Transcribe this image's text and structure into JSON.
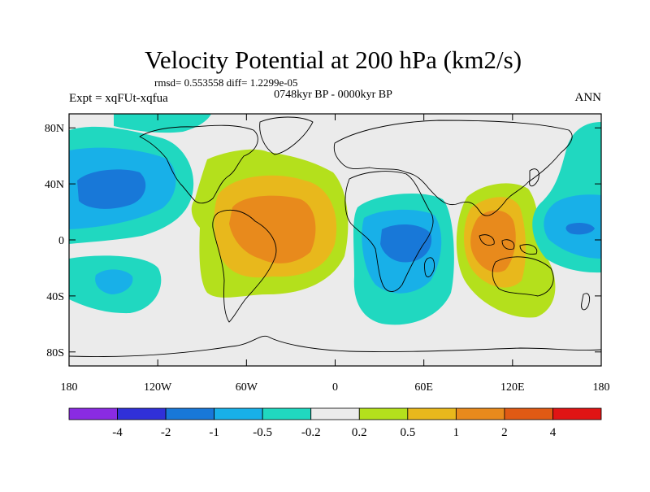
{
  "chart_data": {
    "type": "heatmap",
    "title": "Velocity Potential at 200 hPa (km2/s)",
    "stats_line": "rmsd= 0.553558  diff= 1.2299e-05",
    "experiment": "Expt = xqFUt-xqfua",
    "period": "0748kyr BP - 0000kyr BP",
    "season": "ANN",
    "xlim": [
      -180,
      180
    ],
    "ylim": [
      -90,
      90
    ],
    "x_ticks": [
      -180,
      -120,
      -60,
      0,
      60,
      120,
      180
    ],
    "x_tick_labels": [
      "180",
      "120W",
      "60W",
      "0",
      "60E",
      "120E",
      "180"
    ],
    "y_ticks": [
      80,
      40,
      0,
      -40,
      -80
    ],
    "y_tick_labels": [
      "80N",
      "40N",
      "0",
      "40S",
      "80S"
    ],
    "colorbar": {
      "colors": [
        "#8a2be2",
        "#3030d8",
        "#1878d8",
        "#18b0e8",
        "#20d8c0",
        "#ebebeb",
        "#b4e01c",
        "#e8b81c",
        "#e88a1c",
        "#e05a14",
        "#e01414"
      ],
      "labels": [
        "-4",
        "-2",
        "-1",
        "-0.5",
        "-0.2",
        "0.2",
        "0.5",
        "1",
        "2",
        "4"
      ]
    },
    "anomalies": [
      {
        "name": "north-pacific-negative",
        "lon": -155,
        "lat": 25,
        "value": -1.2
      },
      {
        "name": "arctic-pacific-negative",
        "lon": -160,
        "lat": 65,
        "value": -0.4
      },
      {
        "name": "south-pacific-negative",
        "lon": -150,
        "lat": -35,
        "value": -0.6
      },
      {
        "name": "atlantic-americas-positive",
        "lon": -40,
        "lat": 10,
        "value": 1.3
      },
      {
        "name": "indian-africa-negative",
        "lon": 45,
        "lat": -5,
        "value": -0.9
      },
      {
        "name": "maritime-positive",
        "lon": 100,
        "lat": 0,
        "value": 1.2
      },
      {
        "name": "west-pacific-negative",
        "lon": 160,
        "lat": 10,
        "value": -0.6
      }
    ]
  }
}
